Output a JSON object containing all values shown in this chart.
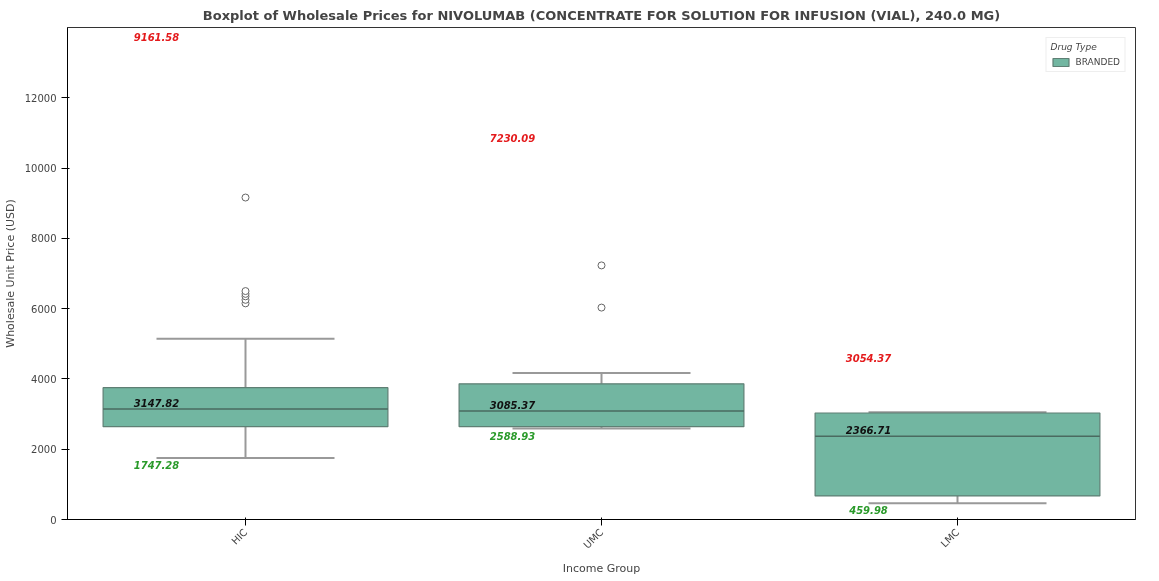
{
  "chart_data": {
    "type": "box",
    "title": "Boxplot of Wholesale Prices for NIVOLUMAB (CONCENTRATE FOR SOLUTION FOR INFUSION (VIAL), 240.0 MG)",
    "xlabel": "Income Group",
    "ylabel": "Wholesale Unit Price (USD)",
    "legend_title": "Drug Type",
    "legend": "top right",
    "grid": false,
    "categories": [
      "HIC",
      "UMC",
      "LMC"
    ],
    "ylim": [
      0,
      14000
    ],
    "yticks": [
      0,
      2000,
      4000,
      6000,
      8000,
      10000,
      12000
    ],
    "series": [
      {
        "name": "BRANDED",
        "color": "#72b6a1",
        "boxes": [
          {
            "low": 1747.28,
            "q1": 2640,
            "median": 3147.82,
            "q3": 3750,
            "high": 5140,
            "outliers": [
              6150,
              6250,
              6350,
              6420,
              6500,
              9161.58
            ]
          },
          {
            "low": 2588.93,
            "q1": 2640,
            "median": 3085.37,
            "q3": 3860,
            "high": 4170,
            "outliers": [
              6030,
              7230.09
            ]
          },
          {
            "low": 459.98,
            "q1": 670,
            "median": 2366.71,
            "q3": 3030,
            "high": 3054.37
          }
        ]
      }
    ],
    "annotations": [
      "9161.58",
      "3147.82",
      "1747.28",
      "7230.09",
      "3085.37",
      "2588.93",
      "3054.37",
      "2366.71",
      "459.98"
    ]
  }
}
